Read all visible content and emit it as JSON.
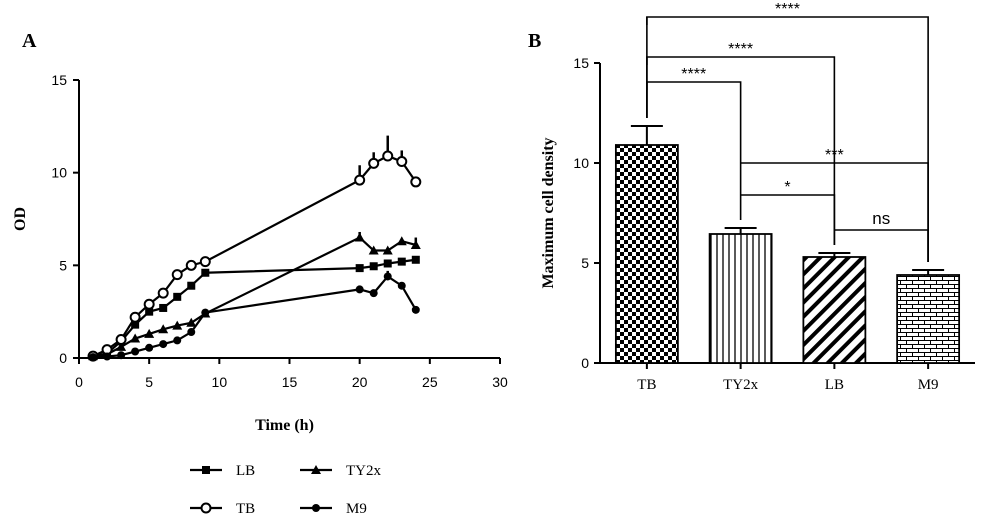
{
  "panels": {
    "a": "A",
    "b": "B"
  },
  "colors": {
    "ink": "#000000",
    "background": "#ffffff"
  },
  "chart_data": [
    {
      "type": "line",
      "panel": "A",
      "xlabel": "Time (h)",
      "ylabel": "OD",
      "xlim": [
        0,
        30
      ],
      "ylim": [
        0,
        15
      ],
      "xticks": [
        "0",
        "5",
        "10",
        "15",
        "20",
        "25",
        "30"
      ],
      "yticks": [
        "0",
        "5",
        "10",
        "15"
      ],
      "legend_position": "bottom",
      "series": [
        {
          "name": "LB",
          "marker": "square",
          "points": [
            [
              1,
              0.1
            ],
            [
              2,
              0.25
            ],
            [
              3,
              0.9
            ],
            [
              4,
              1.8
            ],
            [
              5,
              2.5
            ],
            [
              6,
              2.7
            ],
            [
              7,
              3.3
            ],
            [
              8,
              3.9
            ],
            [
              9,
              4.6
            ],
            [
              20,
              4.85
            ],
            [
              21,
              4.95
            ],
            [
              22,
              5.1
            ],
            [
              23,
              5.2
            ],
            [
              24,
              5.3
            ]
          ],
          "errors": [
            0,
            0,
            0,
            0,
            0,
            0,
            0,
            0,
            0,
            0,
            0,
            0,
            0,
            0.2
          ]
        },
        {
          "name": "TY2x",
          "marker": "triangle",
          "points": [
            [
              1,
              0.1
            ],
            [
              2,
              0.2
            ],
            [
              3,
              0.6
            ],
            [
              4,
              1.05
            ],
            [
              5,
              1.3
            ],
            [
              6,
              1.55
            ],
            [
              7,
              1.75
            ],
            [
              8,
              1.9
            ],
            [
              9,
              2.4
            ],
            [
              20,
              6.5
            ],
            [
              21,
              5.8
            ],
            [
              22,
              5.8
            ],
            [
              23,
              6.3
            ],
            [
              24,
              6.1
            ]
          ],
          "errors": [
            0,
            0,
            0,
            0,
            0,
            0,
            0,
            0,
            0,
            0.3,
            0,
            0,
            0,
            0.4
          ]
        },
        {
          "name": "TB",
          "marker": "circle-open",
          "points": [
            [
              1,
              0.1
            ],
            [
              2,
              0.45
            ],
            [
              3,
              1.0
            ],
            [
              4,
              2.2
            ],
            [
              5,
              2.9
            ],
            [
              6,
              3.5
            ],
            [
              7,
              4.5
            ],
            [
              8,
              5.0
            ],
            [
              9,
              5.2
            ],
            [
              20,
              9.6
            ],
            [
              21,
              10.5
            ],
            [
              22,
              10.9
            ],
            [
              23,
              10.6
            ],
            [
              24,
              9.5
            ]
          ],
          "errors": [
            0,
            0,
            0,
            0,
            0,
            0,
            0,
            0,
            0,
            0.8,
            0.6,
            1.1,
            0.6,
            0
          ]
        },
        {
          "name": "M9",
          "marker": "circle-filled",
          "points": [
            [
              1,
              0.05
            ],
            [
              2,
              0.08
            ],
            [
              3,
              0.15
            ],
            [
              4,
              0.35
            ],
            [
              5,
              0.55
            ],
            [
              6,
              0.75
            ],
            [
              7,
              0.95
            ],
            [
              8,
              1.4
            ],
            [
              9,
              2.45
            ],
            [
              20,
              3.7
            ],
            [
              21,
              3.5
            ],
            [
              22,
              4.4
            ],
            [
              23,
              3.9
            ],
            [
              24,
              2.6
            ]
          ],
          "errors": [
            0,
            0,
            0,
            0,
            0,
            0,
            0,
            0,
            0,
            0.2,
            0,
            0.3,
            0,
            0.2
          ]
        }
      ]
    },
    {
      "type": "bar",
      "panel": "B",
      "categories": [
        "TB",
        "TY2x",
        "LB",
        "M9"
      ],
      "values": [
        10.9,
        6.45,
        5.3,
        4.4
      ],
      "errors": [
        0.95,
        0.3,
        0.2,
        0.25
      ],
      "patterns": [
        "checker",
        "vertical-lines",
        "diagonal-lines",
        "brick"
      ],
      "ylabel": "Maximum cell density",
      "ylim": [
        0,
        15
      ],
      "yticks": [
        "0",
        "5",
        "10",
        "15"
      ],
      "significance": [
        {
          "label": "****",
          "groups": [
            "TB",
            "M9"
          ]
        },
        {
          "label": "****",
          "groups": [
            "TB",
            "LB"
          ]
        },
        {
          "label": "****",
          "groups": [
            "TB",
            "TY2x"
          ]
        },
        {
          "label": "***",
          "groups": [
            "TY2x",
            "M9"
          ]
        },
        {
          "label": "*",
          "groups": [
            "TY2x",
            "LB"
          ]
        },
        {
          "label": "ns",
          "groups": [
            "LB",
            "M9"
          ]
        }
      ]
    }
  ]
}
